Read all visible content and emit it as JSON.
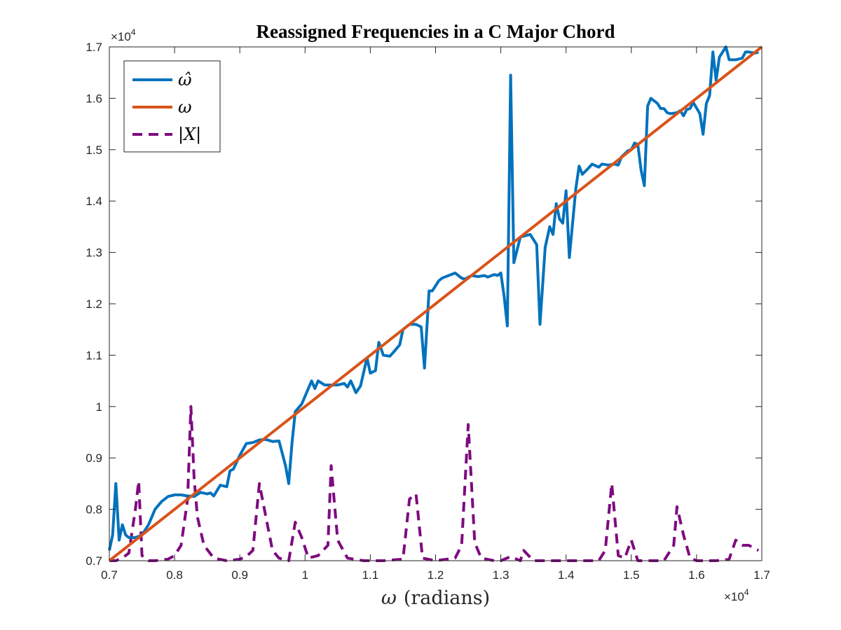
{
  "chart_data": {
    "type": "line",
    "title": "Reassigned Frequencies in a C Major Chord",
    "xlabel_symbol": "ω",
    "xlabel_text": "(radians)",
    "ylabel": "",
    "xlim": [
      7000,
      17000
    ],
    "ylim": [
      7000,
      17000
    ],
    "x_ticks": [
      7000,
      8000,
      9000,
      10000,
      11000,
      12000,
      13000,
      14000,
      15000,
      16000,
      17000
    ],
    "y_ticks": [
      7000,
      8000,
      9000,
      10000,
      11000,
      12000,
      13000,
      14000,
      15000,
      16000,
      17000
    ],
    "x_tick_labels": [
      "0.7",
      "0.8",
      "0.9",
      "1",
      "1.1",
      "1.2",
      "1.3",
      "1.4",
      "1.5",
      "1.6",
      "1.7"
    ],
    "y_tick_labels": [
      "0.7",
      "0.8",
      "0.9",
      "1",
      "1.1",
      "1.2",
      "1.3",
      "1.4",
      "1.5",
      "1.6",
      "1.7"
    ],
    "x_exponent_base": "×10",
    "x_exponent_power": "4",
    "y_exponent_base": "×10",
    "y_exponent_power": "4",
    "grid": false,
    "legend_position": "top-left",
    "series": [
      {
        "name": "ω̂",
        "color": "#0072BD",
        "style": "solid",
        "points": [
          [
            7000,
            7200
          ],
          [
            7050,
            7500
          ],
          [
            7100,
            8500
          ],
          [
            7150,
            7400
          ],
          [
            7200,
            7700
          ],
          [
            7250,
            7500
          ],
          [
            7300,
            7450
          ],
          [
            7400,
            7450
          ],
          [
            7500,
            7500
          ],
          [
            7600,
            7700
          ],
          [
            7700,
            8000
          ],
          [
            7800,
            8150
          ],
          [
            7900,
            8250
          ],
          [
            8000,
            8280
          ],
          [
            8100,
            8280
          ],
          [
            8200,
            8260
          ],
          [
            8300,
            8250
          ],
          [
            8400,
            8330
          ],
          [
            8500,
            8300
          ],
          [
            8550,
            8320
          ],
          [
            8600,
            8260
          ],
          [
            8700,
            8470
          ],
          [
            8800,
            8440
          ],
          [
            8850,
            8750
          ],
          [
            8900,
            8780
          ],
          [
            9000,
            9050
          ],
          [
            9100,
            9280
          ],
          [
            9200,
            9300
          ],
          [
            9300,
            9350
          ],
          [
            9400,
            9360
          ],
          [
            9500,
            9320
          ],
          [
            9600,
            9330
          ],
          [
            9700,
            8850
          ],
          [
            9750,
            8500
          ],
          [
            9800,
            9300
          ],
          [
            9850,
            9900
          ],
          [
            9950,
            10050
          ],
          [
            10100,
            10500
          ],
          [
            10150,
            10350
          ],
          [
            10200,
            10500
          ],
          [
            10300,
            10420
          ],
          [
            10400,
            10420
          ],
          [
            10500,
            10420
          ],
          [
            10600,
            10450
          ],
          [
            10650,
            10380
          ],
          [
            10700,
            10500
          ],
          [
            10780,
            10270
          ],
          [
            10850,
            10400
          ],
          [
            10950,
            10950
          ],
          [
            11000,
            10650
          ],
          [
            11080,
            10700
          ],
          [
            11130,
            11250
          ],
          [
            11200,
            11000
          ],
          [
            11300,
            10980
          ],
          [
            11350,
            11050
          ],
          [
            11450,
            11200
          ],
          [
            11500,
            11500
          ],
          [
            11600,
            11600
          ],
          [
            11700,
            11600
          ],
          [
            11780,
            11550
          ],
          [
            11830,
            10750
          ],
          [
            11900,
            12250
          ],
          [
            11950,
            12250
          ],
          [
            12050,
            12450
          ],
          [
            12100,
            12500
          ],
          [
            12200,
            12550
          ],
          [
            12300,
            12600
          ],
          [
            12400,
            12500
          ],
          [
            12450,
            12480
          ],
          [
            12550,
            12550
          ],
          [
            12650,
            12530
          ],
          [
            12750,
            12550
          ],
          [
            12800,
            12520
          ],
          [
            12900,
            12570
          ],
          [
            12950,
            12550
          ],
          [
            13000,
            12600
          ],
          [
            13050,
            12150
          ],
          [
            13100,
            11570
          ],
          [
            13150,
            16450
          ],
          [
            13200,
            12800
          ],
          [
            13300,
            13300
          ],
          [
            13450,
            13350
          ],
          [
            13550,
            13150
          ],
          [
            13600,
            11600
          ],
          [
            13680,
            13100
          ],
          [
            13750,
            13500
          ],
          [
            13800,
            13350
          ],
          [
            13850,
            13950
          ],
          [
            13900,
            13650
          ],
          [
            13950,
            13570
          ],
          [
            14000,
            14200
          ],
          [
            14050,
            12900
          ],
          [
            14150,
            14250
          ],
          [
            14200,
            14680
          ],
          [
            14250,
            14520
          ],
          [
            14350,
            14650
          ],
          [
            14400,
            14720
          ],
          [
            14500,
            14660
          ],
          [
            14550,
            14720
          ],
          [
            14650,
            14700
          ],
          [
            14750,
            14720
          ],
          [
            14800,
            14700
          ],
          [
            14850,
            14860
          ],
          [
            14950,
            14980
          ],
          [
            15000,
            15000
          ],
          [
            15050,
            15130
          ],
          [
            15100,
            15100
          ],
          [
            15150,
            14600
          ],
          [
            15200,
            14300
          ],
          [
            15250,
            15850
          ],
          [
            15300,
            16000
          ],
          [
            15400,
            15900
          ],
          [
            15450,
            15800
          ],
          [
            15500,
            15800
          ],
          [
            15550,
            15720
          ],
          [
            15600,
            15700
          ],
          [
            15700,
            15720
          ],
          [
            15750,
            15760
          ],
          [
            15800,
            15660
          ],
          [
            15850,
            15780
          ],
          [
            15900,
            15800
          ],
          [
            15950,
            15920
          ],
          [
            16050,
            15700
          ],
          [
            16100,
            15300
          ],
          [
            16150,
            15900
          ],
          [
            16200,
            16050
          ],
          [
            16250,
            16900
          ],
          [
            16300,
            16350
          ],
          [
            16350,
            16800
          ],
          [
            16400,
            16900
          ],
          [
            16450,
            17000
          ],
          [
            16500,
            16750
          ],
          [
            16600,
            16750
          ],
          [
            16700,
            16780
          ],
          [
            16750,
            16900
          ],
          [
            16800,
            16900
          ],
          [
            16900,
            16880
          ],
          [
            16950,
            16900
          ]
        ]
      },
      {
        "name": "ω",
        "color": "#D95319",
        "style": "solid",
        "points": [
          [
            7000,
            7000
          ],
          [
            17000,
            17000
          ]
        ]
      },
      {
        "name": "|X|",
        "color": "#7E0B80",
        "style": "dashed",
        "points": [
          [
            7000,
            7000
          ],
          [
            7100,
            7000
          ],
          [
            7200,
            7050
          ],
          [
            7300,
            7150
          ],
          [
            7400,
            8000
          ],
          [
            7450,
            8550
          ],
          [
            7500,
            7100
          ],
          [
            7600,
            7000
          ],
          [
            7700,
            7000
          ],
          [
            7900,
            7030
          ],
          [
            8000,
            7100
          ],
          [
            8100,
            7300
          ],
          [
            8200,
            8200
          ],
          [
            8250,
            10000
          ],
          [
            8300,
            8600
          ],
          [
            8350,
            7850
          ],
          [
            8450,
            7300
          ],
          [
            8600,
            7050
          ],
          [
            8800,
            7000
          ],
          [
            9000,
            7030
          ],
          [
            9100,
            7080
          ],
          [
            9200,
            7200
          ],
          [
            9300,
            8500
          ],
          [
            9400,
            7850
          ],
          [
            9500,
            7200
          ],
          [
            9600,
            7050
          ],
          [
            9750,
            7000
          ],
          [
            9850,
            7750
          ],
          [
            9950,
            7450
          ],
          [
            10050,
            7050
          ],
          [
            10200,
            7100
          ],
          [
            10350,
            7300
          ],
          [
            10400,
            8850
          ],
          [
            10500,
            7400
          ],
          [
            10650,
            7050
          ],
          [
            10900,
            7000
          ],
          [
            11200,
            7000
          ],
          [
            11500,
            7030
          ],
          [
            11600,
            8200
          ],
          [
            11700,
            8300
          ],
          [
            11800,
            7050
          ],
          [
            12000,
            7000
          ],
          [
            12300,
            7050
          ],
          [
            12400,
            7300
          ],
          [
            12500,
            9650
          ],
          [
            12600,
            7350
          ],
          [
            12700,
            7050
          ],
          [
            12900,
            7000
          ],
          [
            13000,
            7000
          ],
          [
            13150,
            7080
          ],
          [
            13300,
            7000
          ],
          [
            13350,
            7200
          ],
          [
            13500,
            7000
          ],
          [
            14000,
            7000
          ],
          [
            14500,
            7000
          ],
          [
            14600,
            7200
          ],
          [
            14700,
            8500
          ],
          [
            14800,
            7100
          ],
          [
            14900,
            7050
          ],
          [
            15000,
            7400
          ],
          [
            15100,
            7000
          ],
          [
            15500,
            7000
          ],
          [
            15650,
            7300
          ],
          [
            15700,
            8050
          ],
          [
            15800,
            7500
          ],
          [
            15900,
            7050
          ],
          [
            16000,
            7000
          ],
          [
            16300,
            7000
          ],
          [
            16500,
            7030
          ],
          [
            16600,
            7400
          ],
          [
            16700,
            7300
          ],
          [
            16800,
            7300
          ],
          [
            16950,
            7200
          ]
        ]
      }
    ]
  }
}
